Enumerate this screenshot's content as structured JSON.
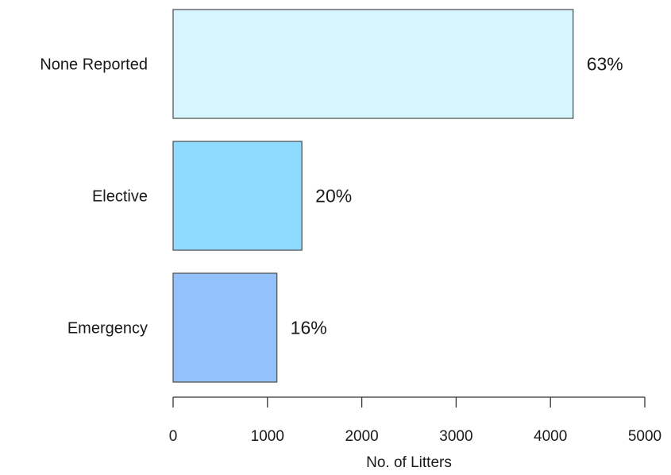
{
  "chart_data": {
    "type": "bar",
    "orientation": "horizontal",
    "categories": [
      "None Reported",
      "Elective",
      "Emergency"
    ],
    "values": [
      4240,
      1365,
      1100
    ],
    "value_labels": [
      "63%",
      "20%",
      "16%"
    ],
    "colors": [
      "#d6f6ff",
      "#8fdbff",
      "#93c1fb"
    ],
    "bar_stroke": "#555555",
    "title": "",
    "xlabel": "No. of Litters",
    "ylabel": "",
    "xlim": [
      0,
      5000
    ],
    "xticks": [
      0,
      1000,
      2000,
      3000,
      4000,
      5000
    ],
    "grid": false,
    "legend": "none"
  }
}
